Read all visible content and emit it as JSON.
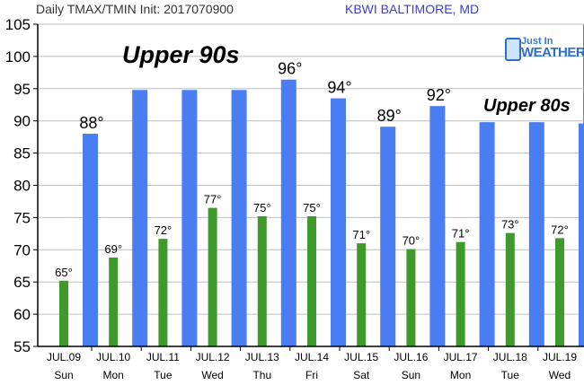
{
  "header": {
    "left": "Daily TMAX/TMIN Init: 2017070900",
    "right": "KBWI BALTIMORE, MD"
  },
  "logo": {
    "line1": "Just In",
    "line2": "WEATHER"
  },
  "annotations": {
    "upper_90s": "Upper 90s",
    "upper_80s": "Upper 80s"
  },
  "colors": {
    "tmax": "#4a7df2",
    "tmin": "#3f9a2c",
    "grid": "#bdbdbd"
  },
  "chart_data": {
    "type": "bar",
    "title": "Daily TMAX/TMIN Init: 2017070900",
    "ylim": [
      55,
      105
    ],
    "yticks": [
      55,
      60,
      65,
      70,
      75,
      80,
      85,
      90,
      95,
      100,
      105
    ],
    "grid": true,
    "categories": [
      "JUL.09",
      "JUL.10",
      "JUL.11",
      "JUL.12",
      "JUL.13",
      "JUL.14",
      "JUL.15",
      "JUL.16",
      "JUL.17",
      "JUL.18",
      "JUL.19"
    ],
    "days": [
      "Sun",
      "Mon",
      "Tue",
      "Wed",
      "Thu",
      "Fri",
      "Sat",
      "Sun",
      "Mon",
      "Tue",
      "Wed"
    ],
    "series": [
      {
        "key": "tmin",
        "values": [
          65.2,
          68.8,
          71.7,
          76.5,
          75.2,
          75.2,
          71.0,
          70.1,
          71.2,
          72.6,
          71.8
        ],
        "labels": [
          "65°",
          "69°",
          "72°",
          "77°",
          "75°",
          "75°",
          "71°",
          "70°",
          "71°",
          "73°",
          "72°"
        ]
      },
      {
        "key": "tmax",
        "values": [
          88.0,
          94.8,
          94.8,
          94.8,
          96.4,
          93.5,
          89.1,
          92.3,
          89.8,
          89.8,
          89.6
        ],
        "labels": [
          "88°",
          "",
          "",
          "",
          "96°",
          "94°",
          "89°",
          "92°",
          "",
          "",
          ""
        ]
      }
    ]
  }
}
